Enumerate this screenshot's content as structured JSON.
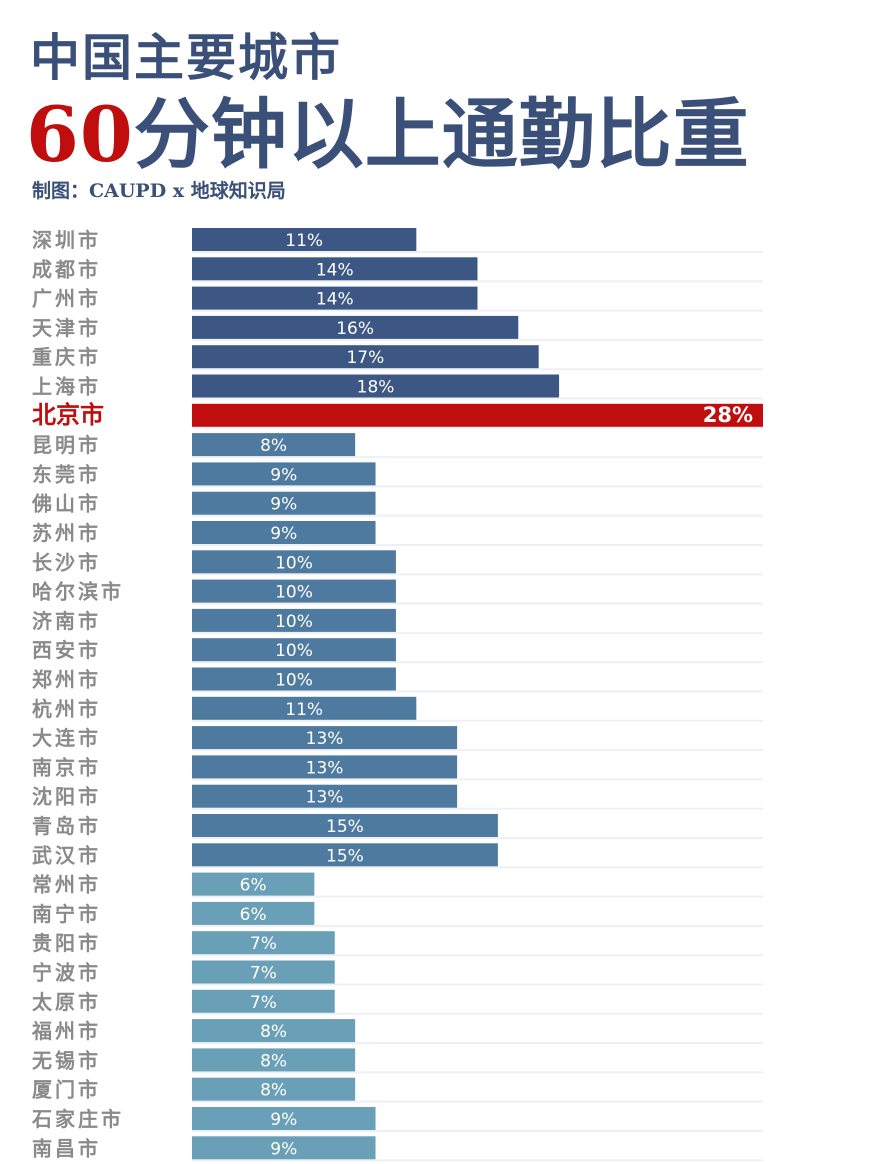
{
  "title": "中国主要城市",
  "subtitle_number": "60",
  "subtitle_rest": "分钟以上通勤比重",
  "credit": "制图：CAUPD x 地球知识局",
  "colors": {
    "title": "#3b5078",
    "highlight": "#c00d0d",
    "label_gray": "#8a8a8a",
    "group_tier1": "#3d5785",
    "group_mid": "#4f7aa0",
    "group_low": "#6a9fb8"
  },
  "chart_data": {
    "type": "bar",
    "orientation": "horizontal",
    "value_unit": "%",
    "highlight_city": "北京市",
    "xlim": [
      0,
      28
    ],
    "categories": [
      "深圳市",
      "成都市",
      "广州市",
      "天津市",
      "重庆市",
      "上海市",
      "北京市",
      "昆明市",
      "东莞市",
      "佛山市",
      "苏州市",
      "长沙市",
      "哈尔滨市",
      "济南市",
      "西安市",
      "郑州市",
      "杭州市",
      "大连市",
      "南京市",
      "沈阳市",
      "青岛市",
      "武汉市",
      "常州市",
      "南宁市",
      "贵阳市",
      "宁波市",
      "太原市",
      "福州市",
      "无锡市",
      "厦门市",
      "石家庄市",
      "南昌市"
    ],
    "values": [
      11,
      14,
      14,
      16,
      17,
      18,
      28,
      8,
      9,
      9,
      9,
      10,
      10,
      10,
      10,
      10,
      11,
      13,
      13,
      13,
      15,
      15,
      6,
      6,
      7,
      7,
      7,
      8,
      8,
      8,
      9,
      9
    ],
    "groups": [
      "tier1",
      "tier1",
      "tier1",
      "tier1",
      "tier1",
      "tier1",
      "highlight",
      "mid",
      "mid",
      "mid",
      "mid",
      "mid",
      "mid",
      "mid",
      "mid",
      "mid",
      "mid",
      "mid",
      "mid",
      "mid",
      "mid",
      "mid",
      "low",
      "low",
      "low",
      "low",
      "low",
      "low",
      "low",
      "low",
      "low",
      "low"
    ],
    "labels": [
      "11%",
      "14%",
      "14%",
      "16%",
      "17%",
      "18%",
      "28%",
      "8%",
      "9%",
      "9%",
      "9%",
      "10%",
      "10%",
      "10%",
      "10%",
      "10%",
      "11%",
      "13%",
      "13%",
      "13%",
      "15%",
      "15%",
      "6%",
      "6%",
      "7%",
      "7%",
      "7%",
      "8%",
      "8%",
      "8%",
      "9%",
      "9%"
    ]
  }
}
